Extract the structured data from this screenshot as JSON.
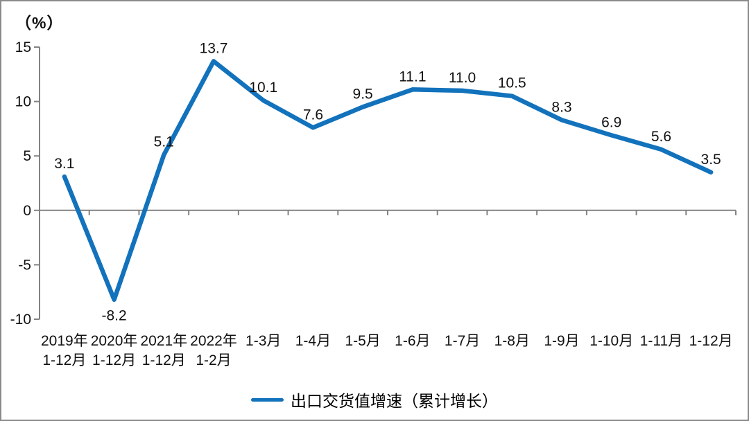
{
  "chart_data": {
    "type": "line",
    "unit_label": "（%）",
    "categories": [
      [
        "2019年",
        "1-12月"
      ],
      [
        "2020年",
        "1-12月"
      ],
      [
        "2021年",
        "1-12月"
      ],
      [
        "2022年",
        "1-2月"
      ],
      [
        "1-3月"
      ],
      [
        "1-4月"
      ],
      [
        "1-5月"
      ],
      [
        "1-6月"
      ],
      [
        "1-7月"
      ],
      [
        "1-8月"
      ],
      [
        "1-9月"
      ],
      [
        "1-10月"
      ],
      [
        "1-11月"
      ],
      [
        "1-12月"
      ]
    ],
    "values": [
      3.1,
      -8.2,
      5.1,
      13.7,
      10.1,
      7.6,
      9.5,
      11.1,
      11.0,
      10.5,
      8.3,
      6.9,
      5.6,
      3.5
    ],
    "value_labels": [
      "3.1",
      "-8.2",
      "5.1",
      "13.7",
      "10.1",
      "7.6",
      "9.5",
      "11.1",
      "11.0",
      "10.5",
      "8.3",
      "6.9",
      "5.6",
      "3.5"
    ],
    "y_ticks": [
      15,
      10,
      5,
      0,
      -5,
      -10
    ],
    "ylim": [
      -10,
      15
    ],
    "series_name": "出口交货值增速（累计增长）",
    "line_color": "#1272BC",
    "axis_color": "#828282",
    "text_color": "#111111",
    "grid": false,
    "legend_position": "bottom-center"
  }
}
